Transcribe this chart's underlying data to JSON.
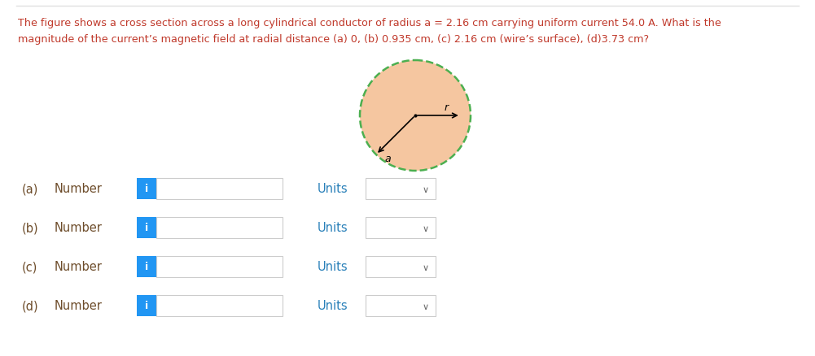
{
  "background_color": "#ffffff",
  "question_text_line1": "The figure shows a cross section across a long cylindrical conductor of radius a = 2.16 cm carrying uniform current 54.0 A. What is the",
  "question_text_line2": "magnitude of the current’s magnetic field at radial distance (a) 0, (b) 0.935 cm, (c) 2.16 cm (wire’s surface), (d)3.73 cm?",
  "question_color": "#c0392b",
  "rows": [
    {
      "label": "(a)",
      "text": "Number",
      "units_text": "Units"
    },
    {
      "label": "(b)",
      "text": "Number",
      "units_text": "Units"
    },
    {
      "label": "(c)",
      "text": "Number",
      "units_text": "Units"
    },
    {
      "label": "(d)",
      "text": "Number",
      "units_text": "Units"
    }
  ],
  "label_color": "#6d4c2a",
  "number_color": "#6d4c2a",
  "units_color": "#2980b9",
  "input_box_color": "#ffffff",
  "input_border_color": "#cccccc",
  "info_btn_color": "#2196F3",
  "info_btn_text": "i",
  "dropdown_border_color": "#cccccc",
  "circle_fill_color": "#f5c6a0",
  "circle_border_color": "#4caf50",
  "arrow_a_label": "a",
  "arrow_r_label": "r",
  "chevron_color": "#666666",
  "top_border_color": "#e0e0e0"
}
